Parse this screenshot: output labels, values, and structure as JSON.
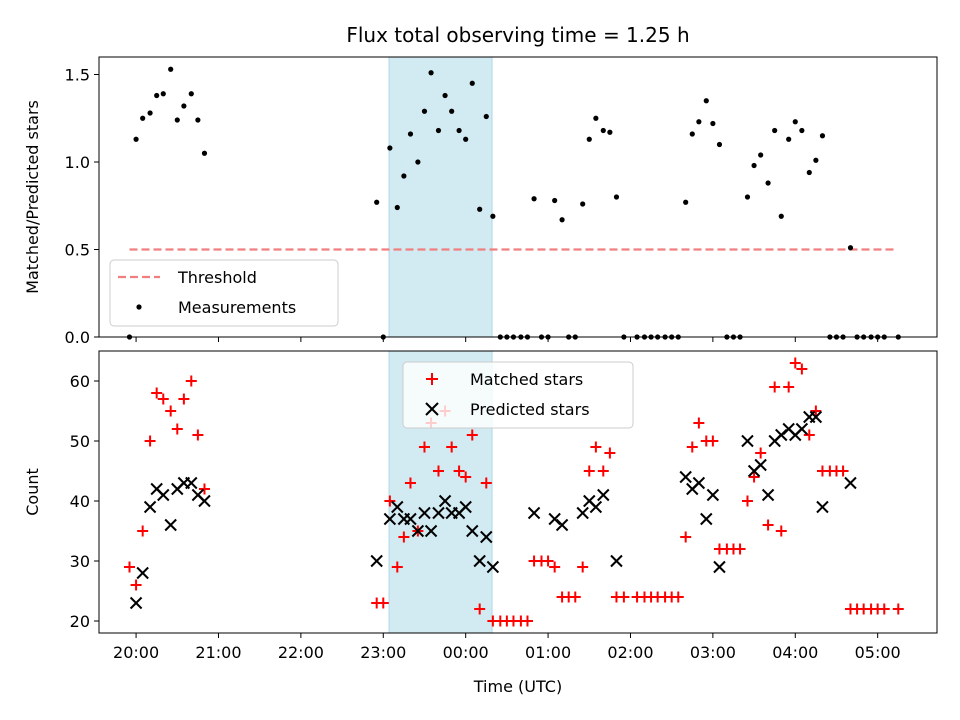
{
  "chart_data": [
    {
      "type": "scatter",
      "title": "Flux total observing time = 1.25 h",
      "ylabel": "Matched/Predicted stars",
      "ylim": [
        0,
        1.6
      ],
      "yticks": [
        "0.0",
        "0.5",
        "1.0",
        "1.5"
      ],
      "xlim": [
        19.55,
        29.72
      ],
      "highlight_band": [
        23.07,
        24.32
      ],
      "highlight_color": "#add8e6",
      "legend": "lower-left",
      "threshold": {
        "name": "Threshold",
        "y": 0.5,
        "x_range": [
          19.92,
          29.2
        ],
        "color": "#f08080"
      },
      "series": [
        {
          "name": "Measurements",
          "color": "#000000",
          "points": [
            [
              19.92,
              0.0
            ],
            [
              20.0,
              1.13
            ],
            [
              20.08,
              1.25
            ],
            [
              20.17,
              1.28
            ],
            [
              20.25,
              1.38
            ],
            [
              20.33,
              1.39
            ],
            [
              20.42,
              1.53
            ],
            [
              20.5,
              1.24
            ],
            [
              20.58,
              1.32
            ],
            [
              20.67,
              1.39
            ],
            [
              20.75,
              1.24
            ],
            [
              20.83,
              1.05
            ],
            [
              22.92,
              0.77
            ],
            [
              23.0,
              0.0
            ],
            [
              23.08,
              1.08
            ],
            [
              23.17,
              0.74
            ],
            [
              23.25,
              0.92
            ],
            [
              23.33,
              1.16
            ],
            [
              23.42,
              1.0
            ],
            [
              23.5,
              1.29
            ],
            [
              23.58,
              1.51
            ],
            [
              23.67,
              1.18
            ],
            [
              23.75,
              1.38
            ],
            [
              23.83,
              1.29
            ],
            [
              23.92,
              1.18
            ],
            [
              24.0,
              1.13
            ],
            [
              24.08,
              1.45
            ],
            [
              24.17,
              0.73
            ],
            [
              24.25,
              1.26
            ],
            [
              24.33,
              0.69
            ],
            [
              24.42,
              0.0
            ],
            [
              24.5,
              0.0
            ],
            [
              24.58,
              0.0
            ],
            [
              24.67,
              0.0
            ],
            [
              24.75,
              0.0
            ],
            [
              24.83,
              0.79
            ],
            [
              24.92,
              0.0
            ],
            [
              25.0,
              0.0
            ],
            [
              25.08,
              0.78
            ],
            [
              25.17,
              0.67
            ],
            [
              25.25,
              0.0
            ],
            [
              25.33,
              0.0
            ],
            [
              25.42,
              0.76
            ],
            [
              25.5,
              1.13
            ],
            [
              25.58,
              1.25
            ],
            [
              25.67,
              1.18
            ],
            [
              25.75,
              1.17
            ],
            [
              25.83,
              0.8
            ],
            [
              25.92,
              0.0
            ],
            [
              26.08,
              0.0
            ],
            [
              26.17,
              0.0
            ],
            [
              26.25,
              0.0
            ],
            [
              26.33,
              0.0
            ],
            [
              26.42,
              0.0
            ],
            [
              26.5,
              0.0
            ],
            [
              26.58,
              0.0
            ],
            [
              26.67,
              0.77
            ],
            [
              26.75,
              1.16
            ],
            [
              26.83,
              1.23
            ],
            [
              26.92,
              1.35
            ],
            [
              27.0,
              1.22
            ],
            [
              27.08,
              1.1
            ],
            [
              27.17,
              0.0
            ],
            [
              27.25,
              0.0
            ],
            [
              27.33,
              0.0
            ],
            [
              27.42,
              0.8
            ],
            [
              27.5,
              0.98
            ],
            [
              27.58,
              1.04
            ],
            [
              27.67,
              0.88
            ],
            [
              27.75,
              1.18
            ],
            [
              27.83,
              0.69
            ],
            [
              27.92,
              1.13
            ],
            [
              28.0,
              1.23
            ],
            [
              28.08,
              1.18
            ],
            [
              28.17,
              0.94
            ],
            [
              28.25,
              1.01
            ],
            [
              28.33,
              1.15
            ],
            [
              28.42,
              0.0
            ],
            [
              28.5,
              0.0
            ],
            [
              28.58,
              0.0
            ],
            [
              28.67,
              0.51
            ],
            [
              28.75,
              0.0
            ],
            [
              28.83,
              0.0
            ],
            [
              28.92,
              0.0
            ],
            [
              29.0,
              0.0
            ],
            [
              29.08,
              0.0
            ],
            [
              29.25,
              0.0
            ]
          ]
        }
      ]
    },
    {
      "type": "scatter",
      "xlabel": "Time (UTC)",
      "ylabel": "Count",
      "ylim": [
        18,
        65
      ],
      "yticks": [
        "20",
        "30",
        "40",
        "50",
        "60"
      ],
      "xlim": [
        19.55,
        29.72
      ],
      "xticks": [
        20,
        21,
        22,
        23,
        24,
        25,
        26,
        27,
        28,
        29
      ],
      "xtick_labels": [
        "20:00",
        "21:00",
        "22:00",
        "23:00",
        "00:00",
        "01:00",
        "02:00",
        "03:00",
        "04:00",
        "05:00"
      ],
      "highlight_band": [
        23.07,
        24.32
      ],
      "highlight_color": "#add8e6",
      "legend": "top-center",
      "series": [
        {
          "name": "Matched stars",
          "marker": "plus",
          "color": "#ff0000",
          "points": [
            [
              19.92,
              29
            ],
            [
              20.0,
              26
            ],
            [
              20.08,
              35
            ],
            [
              20.17,
              50
            ],
            [
              20.25,
              58
            ],
            [
              20.33,
              57
            ],
            [
              20.42,
              55
            ],
            [
              20.5,
              52
            ],
            [
              20.58,
              57
            ],
            [
              20.67,
              60
            ],
            [
              20.75,
              51
            ],
            [
              20.83,
              42
            ],
            [
              22.92,
              23
            ],
            [
              23.0,
              23
            ],
            [
              23.08,
              40
            ],
            [
              23.17,
              29
            ],
            [
              23.25,
              34
            ],
            [
              23.33,
              43
            ],
            [
              23.42,
              35
            ],
            [
              23.5,
              49
            ],
            [
              23.58,
              53
            ],
            [
              23.67,
              45
            ],
            [
              23.75,
              55
            ],
            [
              23.83,
              49
            ],
            [
              23.92,
              45
            ],
            [
              24.0,
              44
            ],
            [
              24.08,
              51
            ],
            [
              24.17,
              22
            ],
            [
              24.25,
              43
            ],
            [
              24.33,
              20
            ],
            [
              24.42,
              20
            ],
            [
              24.5,
              20
            ],
            [
              24.58,
              20
            ],
            [
              24.67,
              20
            ],
            [
              24.75,
              20
            ],
            [
              24.83,
              30
            ],
            [
              24.92,
              30
            ],
            [
              25.0,
              30
            ],
            [
              25.08,
              29
            ],
            [
              25.17,
              24
            ],
            [
              25.25,
              24
            ],
            [
              25.33,
              24
            ],
            [
              25.42,
              29
            ],
            [
              25.5,
              45
            ],
            [
              25.58,
              49
            ],
            [
              25.67,
              45
            ],
            [
              25.75,
              48
            ],
            [
              25.83,
              24
            ],
            [
              25.92,
              24
            ],
            [
              26.08,
              24
            ],
            [
              26.17,
              24
            ],
            [
              26.25,
              24
            ],
            [
              26.33,
              24
            ],
            [
              26.42,
              24
            ],
            [
              26.5,
              24
            ],
            [
              26.58,
              24
            ],
            [
              26.67,
              34
            ],
            [
              26.75,
              49
            ],
            [
              26.83,
              53
            ],
            [
              26.92,
              50
            ],
            [
              27.0,
              50
            ],
            [
              27.08,
              32
            ],
            [
              27.17,
              32
            ],
            [
              27.25,
              32
            ],
            [
              27.33,
              32
            ],
            [
              27.42,
              40
            ],
            [
              27.5,
              44
            ],
            [
              27.58,
              48
            ],
            [
              27.67,
              36
            ],
            [
              27.75,
              59
            ],
            [
              27.83,
              35
            ],
            [
              27.92,
              59
            ],
            [
              28.0,
              63
            ],
            [
              28.08,
              62
            ],
            [
              28.17,
              51
            ],
            [
              28.25,
              55
            ],
            [
              28.33,
              45
            ],
            [
              28.42,
              45
            ],
            [
              28.5,
              45
            ],
            [
              28.58,
              45
            ],
            [
              28.67,
              22
            ],
            [
              28.75,
              22
            ],
            [
              28.83,
              22
            ],
            [
              28.92,
              22
            ],
            [
              29.0,
              22
            ],
            [
              29.08,
              22
            ],
            [
              29.25,
              22
            ]
          ]
        },
        {
          "name": "Predicted stars",
          "marker": "x",
          "color": "#000000",
          "points": [
            [
              20.0,
              23
            ],
            [
              20.08,
              28
            ],
            [
              20.17,
              39
            ],
            [
              20.25,
              42
            ],
            [
              20.33,
              41
            ],
            [
              20.42,
              36
            ],
            [
              20.5,
              42
            ],
            [
              20.58,
              43
            ],
            [
              20.67,
              43
            ],
            [
              20.75,
              41
            ],
            [
              20.83,
              40
            ],
            [
              22.92,
              30
            ],
            [
              23.08,
              37
            ],
            [
              23.17,
              39
            ],
            [
              23.25,
              37
            ],
            [
              23.33,
              37
            ],
            [
              23.42,
              35
            ],
            [
              23.5,
              38
            ],
            [
              23.58,
              35
            ],
            [
              23.67,
              38
            ],
            [
              23.75,
              40
            ],
            [
              23.83,
              38
            ],
            [
              23.92,
              38
            ],
            [
              24.0,
              39
            ],
            [
              24.08,
              35
            ],
            [
              24.17,
              30
            ],
            [
              24.25,
              34
            ],
            [
              24.33,
              29
            ],
            [
              24.83,
              38
            ],
            [
              25.08,
              37
            ],
            [
              25.17,
              36
            ],
            [
              25.42,
              38
            ],
            [
              25.5,
              40
            ],
            [
              25.58,
              39
            ],
            [
              25.67,
              41
            ],
            [
              25.83,
              30
            ],
            [
              26.67,
              44
            ],
            [
              26.75,
              42
            ],
            [
              26.83,
              43
            ],
            [
              26.92,
              37
            ],
            [
              27.0,
              41
            ],
            [
              27.08,
              29
            ],
            [
              27.42,
              50
            ],
            [
              27.5,
              45
            ],
            [
              27.58,
              46
            ],
            [
              27.67,
              41
            ],
            [
              27.75,
              50
            ],
            [
              27.83,
              51
            ],
            [
              27.92,
              52
            ],
            [
              28.0,
              51
            ],
            [
              28.08,
              52
            ],
            [
              28.17,
              54
            ],
            [
              28.25,
              54
            ],
            [
              28.33,
              39
            ],
            [
              28.67,
              43
            ]
          ]
        }
      ]
    }
  ]
}
